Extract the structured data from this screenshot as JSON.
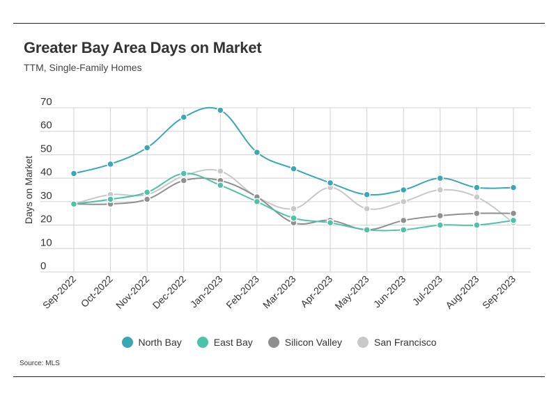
{
  "header": {
    "title": "Greater Bay Area Days on Market",
    "subtitle": "TTM, Single-Family Homes"
  },
  "footer": {
    "source": "Source:  MLS"
  },
  "chart_data": {
    "type": "line",
    "title": "Greater Bay Area Days on Market",
    "subtitle": "TTM, Single-Family Homes",
    "xlabel": "",
    "ylabel": "Days on Market",
    "ylim": [
      0,
      70
    ],
    "yticks": [
      0,
      10,
      20,
      30,
      40,
      50,
      60,
      70
    ],
    "grid": true,
    "legend_position": "bottom",
    "categories": [
      "Sep-2022",
      "Oct-2022",
      "Nov-2022",
      "Dec-2022",
      "Jan-2023",
      "Feb-2023",
      "Mar-2023",
      "Apr-2023",
      "May-2023",
      "Jun-2023",
      "Jul-2023",
      "Aug-2023",
      "Sep-2023"
    ],
    "series": [
      {
        "name": "North Bay",
        "color": "#3aa7b7",
        "values": [
          42,
          46,
          53,
          66,
          69,
          51,
          44,
          38,
          33,
          35,
          40,
          36,
          36
        ]
      },
      {
        "name": "East Bay",
        "color": "#4cc3a6",
        "values": [
          29,
          31,
          34,
          42,
          37,
          30,
          23,
          21,
          18,
          18,
          20,
          20,
          22
        ]
      },
      {
        "name": "Silicon Valley",
        "color": "#8f8f8f",
        "values": [
          29,
          29,
          31,
          39,
          39,
          32,
          21,
          22,
          18,
          22,
          24,
          25,
          25
        ]
      },
      {
        "name": "San Francisco",
        "color": "#c8c8c8",
        "values": [
          29,
          33,
          33,
          41,
          43,
          32,
          27,
          36,
          27,
          30,
          35,
          32,
          21
        ]
      }
    ]
  }
}
